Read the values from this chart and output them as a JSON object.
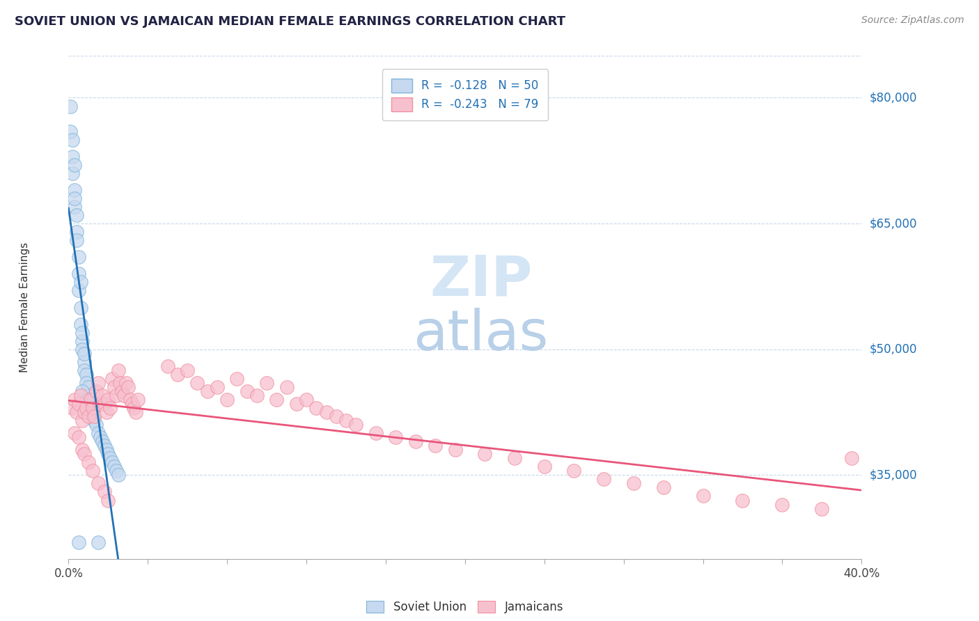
{
  "title": "SOVIET UNION VS JAMAICAN MEDIAN FEMALE EARNINGS CORRELATION CHART",
  "source": "Source: ZipAtlas.com",
  "ylabel": "Median Female Earnings",
  "legend_label_1": "Soviet Union",
  "legend_label_2": "Jamaicans",
  "xmin": 0.0,
  "xmax": 0.4,
  "ymin": 25000,
  "ymax": 85000,
  "ytick_positions": [
    35000,
    50000,
    65000,
    80000
  ],
  "ytick_labels": [
    "$35,000",
    "$50,000",
    "$65,000",
    "$80,000"
  ],
  "blue_fill": "#c6d9f0",
  "blue_edge": "#7eb3d8",
  "pink_fill": "#f7c0cf",
  "pink_edge": "#f0909f",
  "trendline_blue": "#2171b5",
  "trendline_pink": "#e8557a",
  "grid_color": "#c8d8e8",
  "watermark_color": "#d4e5f5",
  "title_color": "#222244",
  "source_color": "#888888",
  "axis_label_color": "#333333",
  "yvalue_color": "#2171b5",
  "legend_text_color": "#2171b5"
}
